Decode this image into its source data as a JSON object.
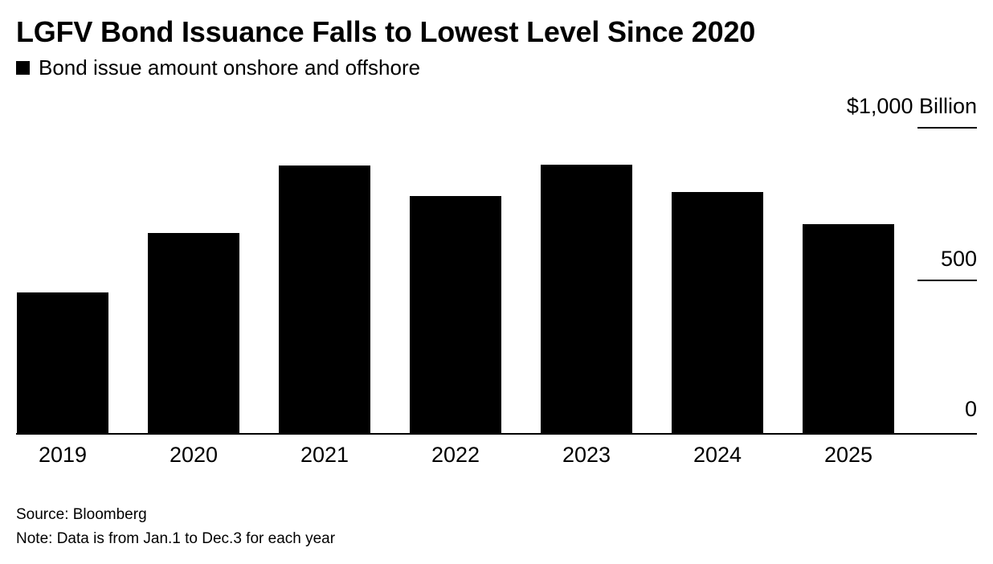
{
  "chart": {
    "title": "LGFV Bond Issuance Falls to Lowest Level Since 2020",
    "legend_label": "Bond issue amount onshore and offshore",
    "source": "Source: Bloomberg",
    "note": "Note: Data is from Jan.1 to Dec.3 for each year"
  },
  "colors": {
    "bar": "#000000",
    "text": "#000000",
    "background": "#ffffff"
  },
  "chart_data": {
    "type": "bar",
    "title": "LGFV Bond Issuance Falls to Lowest Level Since 2020",
    "series_label": "Bond issue amount onshore and offshore",
    "categories": [
      "2019",
      "2020",
      "2021",
      "2022",
      "2023",
      "2024",
      "2025"
    ],
    "values": [
      460,
      655,
      875,
      775,
      880,
      790,
      685
    ],
    "unit": "USD Billion",
    "ylabel": "$1,000 Billion",
    "ylim": [
      0,
      1000
    ],
    "y_ticks": [
      {
        "label": "$1,000 Billion",
        "value": 1000
      },
      {
        "label": "500",
        "value": 500
      },
      {
        "label": "0",
        "value": 0
      }
    ],
    "grid": "off",
    "legend_position": "top-left",
    "y_axis_position": "right"
  }
}
